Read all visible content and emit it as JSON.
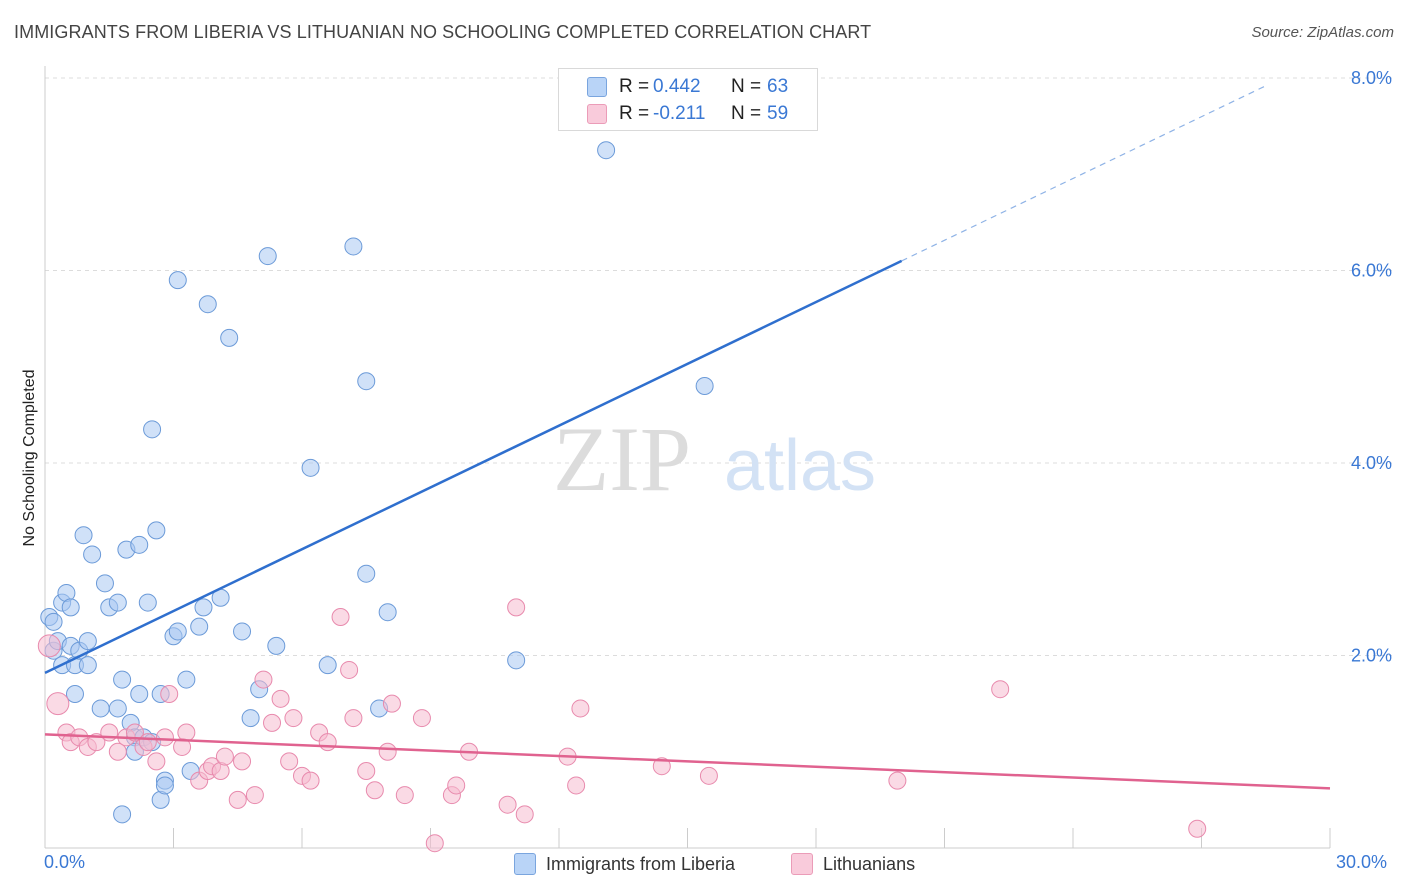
{
  "title": "IMMIGRANTS FROM LIBERIA VS LITHUANIAN NO SCHOOLING COMPLETED CORRELATION CHART",
  "source": "Source: ZipAtlas.com",
  "watermark": {
    "zip": "ZIP",
    "atlas": "atlas"
  },
  "legend": {
    "rows": [
      {
        "r_label": "R = ",
        "r_value": "0.442",
        "n_label": "N = ",
        "n_value": "63",
        "color": "#a9c8f2"
      },
      {
        "r_label": "R = ",
        "r_value": "-0.211",
        "n_label": "N = ",
        "n_value": "59",
        "color": "#f6bcd0"
      }
    ]
  },
  "bottom_legend": [
    {
      "label": "Immigrants from Liberia",
      "color": "#b9d4f7"
    },
    {
      "label": "Lithuanians",
      "color": "#f9cbdb"
    }
  ],
  "chart_data": {
    "type": "scatter",
    "title": "IMMIGRANTS FROM LIBERIA VS LITHUANIAN NO SCHOOLING COMPLETED CORRELATION CHART",
    "xlabel": "",
    "ylabel": "No Schooling Completed",
    "xlim": [
      0,
      30
    ],
    "ylim": [
      0,
      8.0
    ],
    "x_tick_labels": [
      "0.0%",
      "30.0%"
    ],
    "y_tick_values": [
      2.0,
      4.0,
      6.0,
      8.0
    ],
    "y_tick_labels": [
      "2.0%",
      "4.0%",
      "6.0%",
      "8.0%"
    ],
    "grid": "horizontal dashed",
    "legend_position": "top-center",
    "series": [
      {
        "name": "Immigrants from Liberia",
        "color": "#a9c8f2",
        "stroke": "#6b9ad8",
        "trend": {
          "x0": 0,
          "y0": 1.82,
          "x1": 20,
          "y1": 6.1,
          "dash_to_x": 28.5,
          "color": "#2f6fce"
        },
        "points": [
          [
            0.1,
            2.4
          ],
          [
            0.2,
            2.35
          ],
          [
            0.2,
            2.05
          ],
          [
            0.3,
            2.15
          ],
          [
            0.4,
            2.55
          ],
          [
            0.4,
            1.9
          ],
          [
            0.5,
            2.65
          ],
          [
            0.6,
            2.5
          ],
          [
            0.6,
            2.1
          ],
          [
            0.7,
            1.9
          ],
          [
            0.7,
            1.6
          ],
          [
            0.8,
            2.05
          ],
          [
            0.9,
            3.25
          ],
          [
            1.0,
            1.9
          ],
          [
            1.0,
            2.15
          ],
          [
            1.1,
            3.05
          ],
          [
            1.3,
            1.45
          ],
          [
            1.4,
            2.75
          ],
          [
            1.5,
            2.5
          ],
          [
            1.7,
            2.55
          ],
          [
            1.7,
            1.45
          ],
          [
            1.8,
            1.75
          ],
          [
            1.8,
            0.35
          ],
          [
            1.9,
            3.1
          ],
          [
            2.0,
            1.3
          ],
          [
            2.1,
            1.15
          ],
          [
            2.1,
            1.0
          ],
          [
            2.2,
            1.6
          ],
          [
            2.2,
            3.15
          ],
          [
            2.3,
            1.15
          ],
          [
            2.4,
            2.55
          ],
          [
            2.5,
            4.35
          ],
          [
            2.5,
            1.1
          ],
          [
            2.6,
            3.3
          ],
          [
            2.7,
            0.5
          ],
          [
            2.7,
            1.6
          ],
          [
            2.8,
            0.7
          ],
          [
            2.8,
            0.65
          ],
          [
            3.0,
            2.2
          ],
          [
            3.1,
            5.9
          ],
          [
            3.1,
            2.25
          ],
          [
            3.3,
            1.75
          ],
          [
            3.4,
            0.8
          ],
          [
            3.7,
            2.5
          ],
          [
            3.6,
            2.3
          ],
          [
            3.8,
            5.65
          ],
          [
            4.1,
            2.6
          ],
          [
            4.3,
            5.3
          ],
          [
            4.6,
            2.25
          ],
          [
            4.8,
            1.35
          ],
          [
            5.0,
            1.65
          ],
          [
            5.2,
            6.15
          ],
          [
            5.4,
            2.1
          ],
          [
            6.2,
            3.95
          ],
          [
            6.6,
            1.9
          ],
          [
            7.2,
            6.25
          ],
          [
            7.5,
            2.85
          ],
          [
            7.5,
            4.85
          ],
          [
            7.8,
            1.45
          ],
          [
            8.0,
            2.45
          ],
          [
            11.0,
            1.95
          ],
          [
            13.1,
            7.25
          ],
          [
            15.4,
            4.8
          ]
        ]
      },
      {
        "name": "Lithuanians",
        "color": "#f6bcd0",
        "stroke": "#e88aad",
        "trend": {
          "x0": 0,
          "y0": 1.18,
          "x1": 30,
          "y1": 0.62,
          "color": "#e0628f"
        },
        "points": [
          [
            0.1,
            2.1
          ],
          [
            0.3,
            1.5
          ],
          [
            0.5,
            1.2
          ],
          [
            0.6,
            1.1
          ],
          [
            0.8,
            1.15
          ],
          [
            1.0,
            1.05
          ],
          [
            1.2,
            1.1
          ],
          [
            1.5,
            1.2
          ],
          [
            1.7,
            1.0
          ],
          [
            1.9,
            1.15
          ],
          [
            2.1,
            1.2
          ],
          [
            2.3,
            1.05
          ],
          [
            2.4,
            1.1
          ],
          [
            2.6,
            0.9
          ],
          [
            2.8,
            1.15
          ],
          [
            2.9,
            1.6
          ],
          [
            3.2,
            1.05
          ],
          [
            3.3,
            1.2
          ],
          [
            3.6,
            0.7
          ],
          [
            3.8,
            0.8
          ],
          [
            3.9,
            0.85
          ],
          [
            4.1,
            0.8
          ],
          [
            4.2,
            0.95
          ],
          [
            4.5,
            0.5
          ],
          [
            4.6,
            0.9
          ],
          [
            4.9,
            0.55
          ],
          [
            5.1,
            1.75
          ],
          [
            5.3,
            1.3
          ],
          [
            5.5,
            1.55
          ],
          [
            5.7,
            0.9
          ],
          [
            5.8,
            1.35
          ],
          [
            6.0,
            0.75
          ],
          [
            6.2,
            0.7
          ],
          [
            6.4,
            1.2
          ],
          [
            6.6,
            1.1
          ],
          [
            6.9,
            2.4
          ],
          [
            7.1,
            1.85
          ],
          [
            7.2,
            1.35
          ],
          [
            7.5,
            0.8
          ],
          [
            7.7,
            0.6
          ],
          [
            8.0,
            1.0
          ],
          [
            8.1,
            1.5
          ],
          [
            8.4,
            0.55
          ],
          [
            8.8,
            1.35
          ],
          [
            9.1,
            0.05
          ],
          [
            9.5,
            0.55
          ],
          [
            9.6,
            0.65
          ],
          [
            9.9,
            1.0
          ],
          [
            10.8,
            0.45
          ],
          [
            11.0,
            2.5
          ],
          [
            11.2,
            0.35
          ],
          [
            12.2,
            0.95
          ],
          [
            12.5,
            1.45
          ],
          [
            12.4,
            0.65
          ],
          [
            14.4,
            0.85
          ],
          [
            15.5,
            0.75
          ],
          [
            19.9,
            0.7
          ],
          [
            22.3,
            1.65
          ],
          [
            26.9,
            0.2
          ]
        ]
      }
    ]
  }
}
